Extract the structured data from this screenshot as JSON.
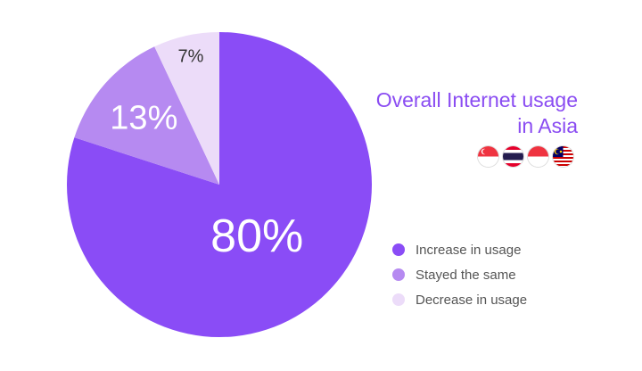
{
  "chart_data": {
    "type": "pie",
    "title": "Overall Internet usage in Asia",
    "title_lines": [
      "Overall Internet usage",
      "in Asia"
    ],
    "slices": [
      {
        "name": "Increase in usage",
        "value": 80,
        "label": "80%",
        "color": "#8a4cf6",
        "label_color": "#ffffff"
      },
      {
        "name": "Stayed the same",
        "value": 13,
        "label": "13%",
        "color": "#b68af1",
        "label_color": "#ffffff"
      },
      {
        "name": "Decrease in usage",
        "value": 7,
        "label": "7%",
        "color": "#ecdcf9",
        "label_color": "#333333"
      }
    ],
    "legend_position": "bottom-right",
    "flags": [
      "singapore-flag-icon",
      "thailand-flag-icon",
      "indonesia-flag-icon",
      "malaysia-flag-icon"
    ]
  }
}
